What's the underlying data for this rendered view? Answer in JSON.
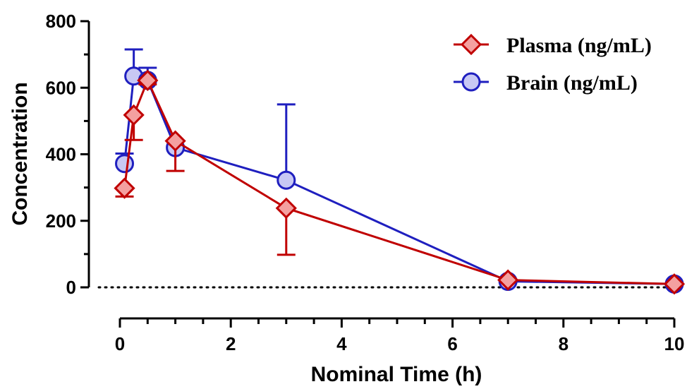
{
  "chart_data": {
    "type": "line",
    "title": "",
    "xlabel": "Nominal Time (h)",
    "ylabel": "Concentration",
    "xlim": [
      0,
      10
    ],
    "ylim": [
      0,
      800
    ],
    "x_ticks": [
      0,
      2,
      4,
      6,
      8,
      10
    ],
    "x_ticks_labels": [
      "0",
      "2",
      "4",
      "6",
      "8",
      "10"
    ],
    "y_ticks": [
      0,
      200,
      400,
      600,
      800
    ],
    "y_ticks_labels": [
      "0",
      "200",
      "400",
      "600",
      "800"
    ],
    "grid": false,
    "baseline": "dotted line at y=0",
    "legend_position": "top-right",
    "series": [
      {
        "name": "Plasma (ng/mL)",
        "color": "#c00000",
        "fill": "#f4a0a0",
        "marker": "diamond",
        "x": [
          0.083,
          0.25,
          0.5,
          1,
          3,
          7,
          10
        ],
        "y": [
          298,
          518,
          622,
          440,
          238,
          22,
          10
        ],
        "err": [
          25,
          75,
          12,
          90,
          140,
          0,
          0
        ]
      },
      {
        "name": "Brain (ng/mL)",
        "color": "#1f1fbf",
        "fill": "#c8c8f4",
        "marker": "circle",
        "x": [
          0.083,
          0.25,
          0.5,
          1,
          3,
          7,
          10
        ],
        "y": [
          372,
          635,
          622,
          420,
          322,
          18,
          10
        ],
        "err": [
          30,
          80,
          38,
          0,
          228,
          0,
          0
        ]
      }
    ]
  }
}
